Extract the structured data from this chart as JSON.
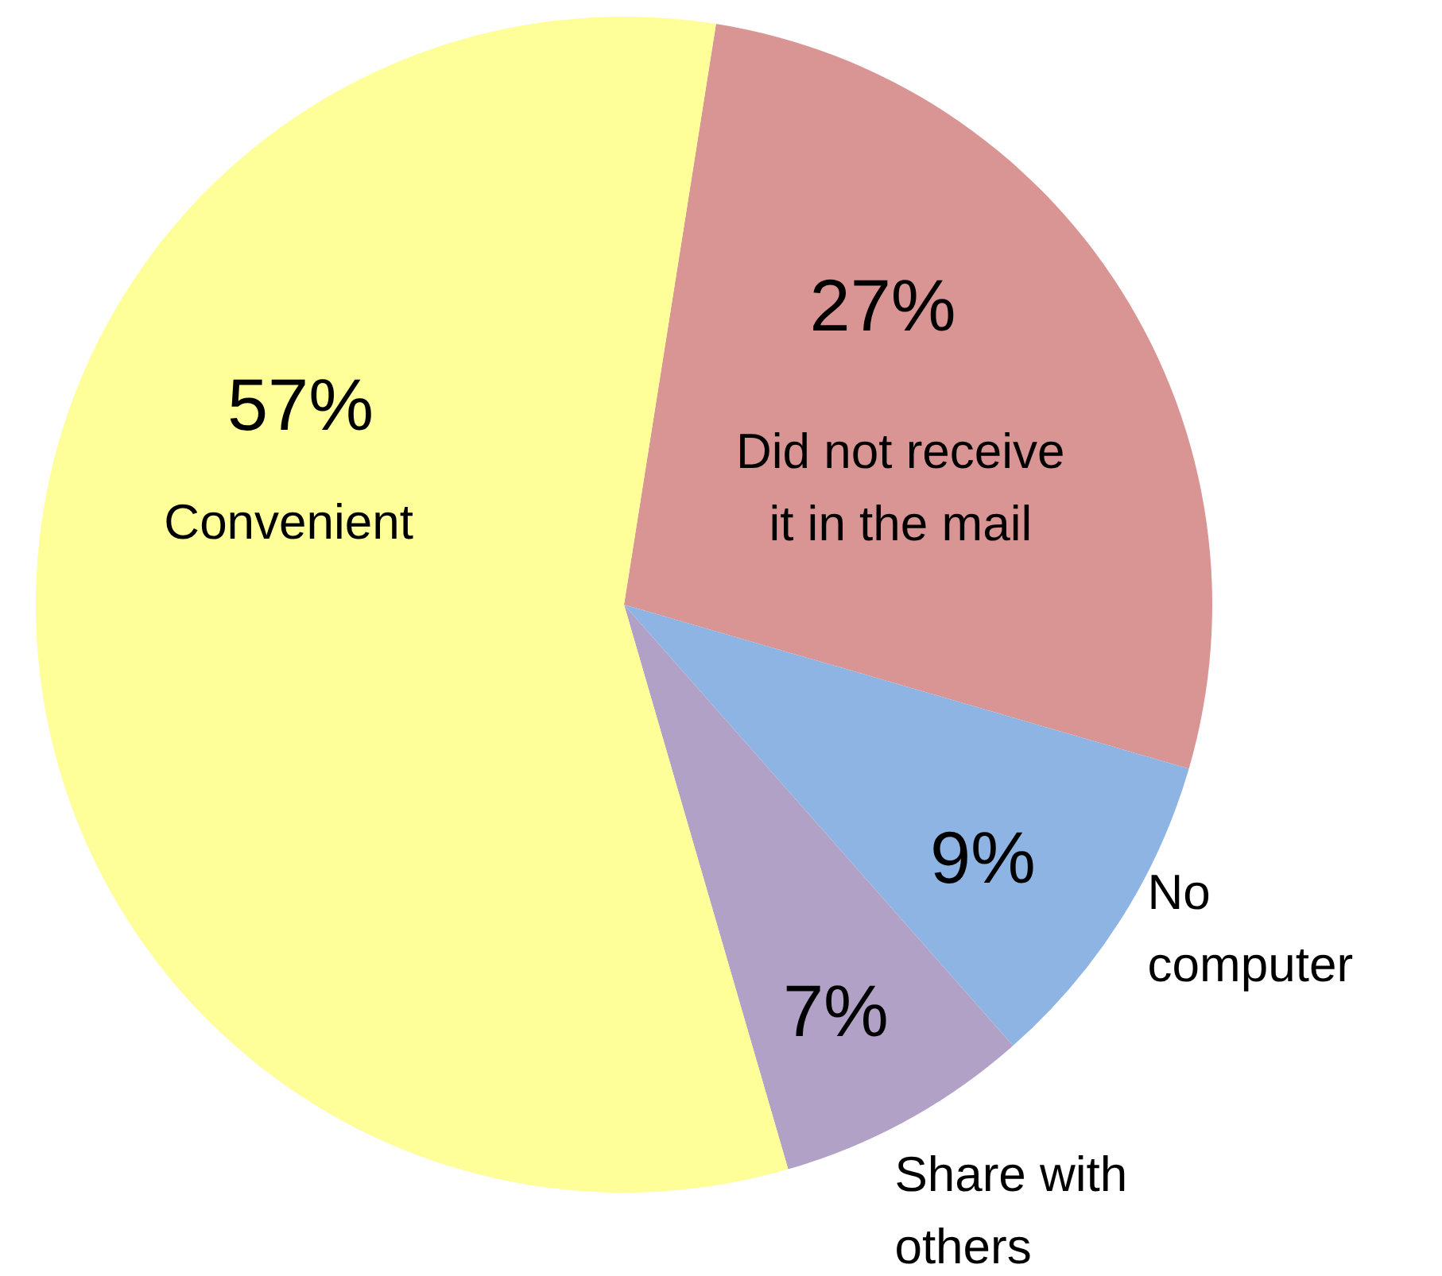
{
  "chart_data": {
    "type": "pie",
    "categories": [
      "Did not receive it in the mail",
      "No computer",
      "Share with others",
      "Convenient"
    ],
    "values": [
      27,
      9,
      7,
      57
    ],
    "colors": [
      "#d99594",
      "#8eb4e3",
      "#b2a1c7",
      "#ffff99"
    ],
    "value_labels": [
      "27%",
      "9%",
      "7%",
      "57%"
    ]
  }
}
